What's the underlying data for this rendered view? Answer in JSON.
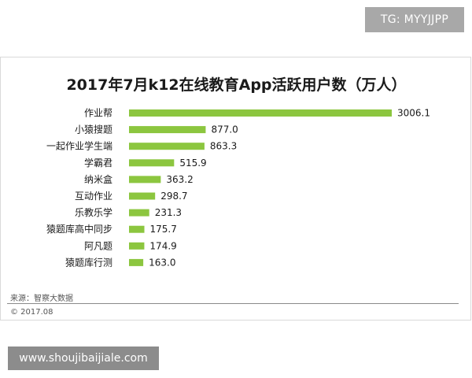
{
  "watermark": {
    "tg_label": "TG: MYYJJPP",
    "site_label": "www.shoujibaijiale.com"
  },
  "footer": {
    "source": "来源：智察大数据",
    "copyright": "© 2017.08"
  },
  "colors": {
    "bar": "#8cc63f",
    "label_text": "#1a1a1a",
    "badge_bg": "#a8a8a8"
  },
  "chart_data": {
    "type": "bar",
    "orientation": "horizontal",
    "title": "2017年7月k12在线教育App活跃用户数（万人）",
    "categories": [
      "作业帮",
      "小猿搜题",
      "一起作业学生端",
      "学霸君",
      "纳米盒",
      "互动作业",
      "乐教乐学",
      "猿题库高中同步",
      "阿凡题",
      "猿题库行测"
    ],
    "values": [
      3006.1,
      877.0,
      863.3,
      515.9,
      363.2,
      298.7,
      231.3,
      175.7,
      174.9,
      163.0
    ],
    "value_labels": [
      "3006.1",
      "877.0",
      "863.3",
      "515.9",
      "363.2",
      "298.7",
      "231.3",
      "175.7",
      "174.9",
      "163.0"
    ],
    "xlim": [
      0,
      3006.1
    ],
    "grid": false,
    "legend": "none"
  }
}
